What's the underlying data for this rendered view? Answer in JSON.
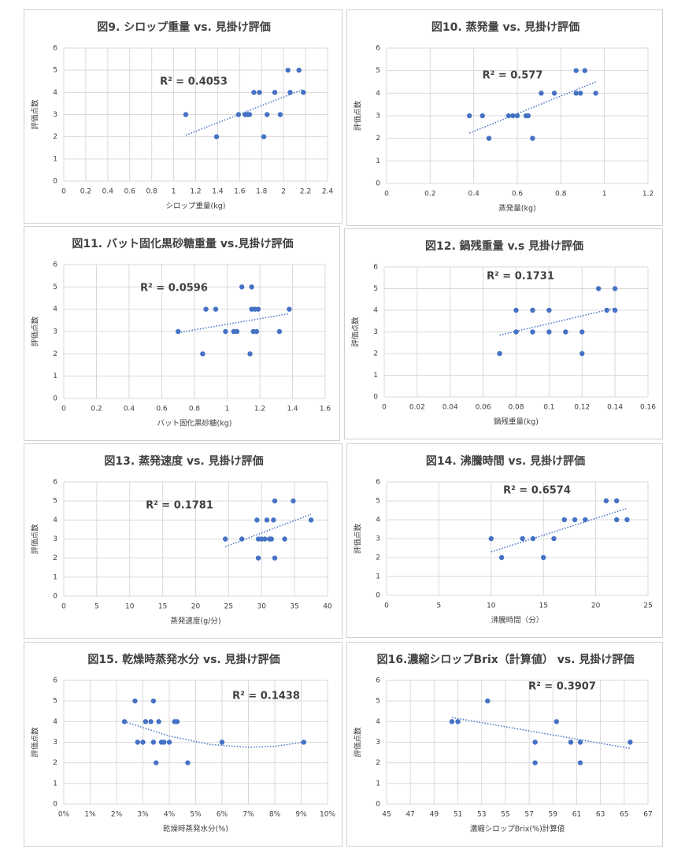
{
  "chart_data": [
    {
      "type": "scatter",
      "title": "図9.  シロップ重量   vs.   見掛け評価",
      "annotation": "R² = 0.4053",
      "x_label": "シロップ重量(kg)",
      "y_label": "評価点数",
      "color": "#4472c4",
      "grid": true,
      "x": [
        1.11,
        1.39,
        1.59,
        1.65,
        1.67,
        1.69,
        1.73,
        1.78,
        1.82,
        1.85,
        1.92,
        1.97,
        2.04,
        2.06,
        2.14,
        2.18
      ],
      "y": [
        3,
        2,
        3,
        3,
        3,
        3,
        4,
        4,
        2,
        3,
        4,
        3,
        5,
        4,
        5,
        4
      ],
      "xlim": [
        0,
        2.4
      ],
      "xticks": [
        0,
        0.2,
        0.4,
        0.6,
        0.8,
        1,
        1.2,
        1.4,
        1.6,
        1.8,
        2,
        2.2,
        2.4
      ],
      "ylim": [
        0,
        6
      ],
      "yticks": [
        0,
        1,
        2,
        3,
        4,
        5,
        6
      ],
      "trendline": {
        "x": [
          1.11,
          2.18
        ],
        "y": [
          2.07,
          4.14
        ]
      }
    },
    {
      "type": "scatter",
      "title": "図10.  蒸発量   vs.   見掛け評価",
      "annotation": "R² = 0.577",
      "x_label": "蒸発量(kg)",
      "y_label": "評価点数",
      "color": "#4472c4",
      "grid": true,
      "x": [
        0.38,
        0.44,
        0.47,
        0.56,
        0.58,
        0.6,
        0.64,
        0.65,
        0.67,
        0.71,
        0.77,
        0.87,
        0.87,
        0.89,
        0.91,
        0.96
      ],
      "y": [
        3,
        3,
        2,
        3,
        3,
        3,
        3,
        3,
        2,
        4,
        4,
        5,
        4,
        4,
        5,
        4
      ],
      "xlim": [
        0,
        1.2
      ],
      "xticks": [
        0,
        0.2,
        0.4,
        0.6,
        0.8,
        1,
        1.2
      ],
      "ylim": [
        0,
        6
      ],
      "yticks": [
        0,
        1,
        2,
        3,
        4,
        5,
        6
      ],
      "trendline": {
        "x": [
          0.38,
          0.96
        ],
        "y": [
          2.23,
          4.5
        ]
      }
    },
    {
      "type": "scatter",
      "title": "図11.   バット固化黒砂糖重量    vs.見掛け評価",
      "annotation": "R² = 0.0596",
      "x_label": "バット固化黒砂糖(kg)",
      "y_label": "評価点数",
      "color": "#4472c4",
      "grid": true,
      "x": [
        0.7,
        0.85,
        0.87,
        0.93,
        0.99,
        1.04,
        1.06,
        1.09,
        1.14,
        1.15,
        1.15,
        1.16,
        1.17,
        1.18,
        1.19,
        1.32,
        1.38
      ],
      "y": [
        3,
        2,
        4,
        4,
        3,
        3,
        3,
        5,
        2,
        4,
        5,
        3,
        4,
        3,
        4,
        3,
        4
      ],
      "xlim": [
        0,
        1.6
      ],
      "xticks": [
        0,
        0.2,
        0.4,
        0.6,
        0.8,
        1,
        1.2,
        1.4,
        1.6
      ],
      "ylim": [
        0,
        6
      ],
      "yticks": [
        0,
        1,
        2,
        3,
        4,
        5,
        6
      ],
      "trendline": {
        "x": [
          0.7,
          1.38
        ],
        "y": [
          2.95,
          3.8
        ]
      }
    },
    {
      "type": "scatter",
      "title": "図12.   鍋残重量   v.s   見掛け評価",
      "annotation": "R² = 0.1731",
      "x_label": "鍋残重量(kg)",
      "y_label": "評価点数",
      "color": "#4472c4",
      "grid": true,
      "x": [
        0.07,
        0.08,
        0.08,
        0.09,
        0.09,
        0.1,
        0.1,
        0.11,
        0.12,
        0.12,
        0.13,
        0.135,
        0.14,
        0.14
      ],
      "y": [
        2,
        3,
        4,
        3,
        4,
        3,
        4,
        3,
        3,
        2,
        5,
        4,
        5,
        4
      ],
      "xlim": [
        0,
        0.16
      ],
      "xticks": [
        0,
        0.02,
        0.04,
        0.06,
        0.08,
        0.1,
        0.12,
        0.14,
        0.16
      ],
      "ylim": [
        0,
        6
      ],
      "yticks": [
        0,
        1,
        2,
        3,
        4,
        5,
        6
      ],
      "trendline": {
        "x": [
          0.07,
          0.14
        ],
        "y": [
          2.85,
          4.1
        ]
      }
    },
    {
      "type": "scatter",
      "title": "図13.   蒸発速度   vs.   見掛け評価",
      "annotation": "R² = 0.1781",
      "x_label": "蒸発速度(g/分)",
      "y_label": "評価点数",
      "color": "#4472c4",
      "grid": true,
      "x": [
        24.5,
        27,
        29.3,
        29.5,
        29.5,
        30,
        30.5,
        30.8,
        31.2,
        31.5,
        31.8,
        32,
        32,
        33.5,
        34.8,
        37.5
      ],
      "y": [
        3,
        3,
        4,
        3,
        2,
        3,
        3,
        4,
        3,
        3,
        4,
        5,
        2,
        3,
        5,
        4
      ],
      "xlim": [
        0,
        40
      ],
      "xticks": [
        0,
        5,
        10,
        15,
        20,
        25,
        30,
        35,
        40
      ],
      "ylim": [
        0,
        6
      ],
      "yticks": [
        0,
        1,
        2,
        3,
        4,
        5,
        6
      ],
      "trendline": {
        "x": [
          24.5,
          37.5
        ],
        "y": [
          2.6,
          4.3
        ]
      }
    },
    {
      "type": "scatter",
      "title": "図14.   沸騰時間   vs.   見掛け評価",
      "annotation": "R² = 0.6574",
      "x_label": "沸騰時間（分）",
      "y_label": "評価点数",
      "color": "#4472c4",
      "grid": true,
      "x": [
        10,
        11,
        13,
        14,
        15,
        16,
        17,
        18,
        19,
        21,
        22,
        22,
        23
      ],
      "y": [
        3,
        2,
        3,
        3,
        2,
        3,
        4,
        4,
        4,
        5,
        5,
        4,
        4
      ],
      "xlim": [
        0,
        25
      ],
      "xticks": [
        0,
        5,
        10,
        15,
        20,
        25
      ],
      "ylim": [
        0,
        6
      ],
      "yticks": [
        0,
        1,
        2,
        3,
        4,
        5,
        6
      ],
      "trendline": {
        "x": [
          10,
          23
        ],
        "y": [
          2.3,
          4.6
        ]
      }
    },
    {
      "type": "scatter",
      "title": "図15.   乾燥時蒸発水分   vs.   見掛け評価",
      "annotation": "R² = 0.1438",
      "x_label": "乾燥時蒸発水分(%)",
      "y_label": "評価点数",
      "color": "#4472c4",
      "grid": true,
      "x": [
        2.3,
        2.7,
        2.8,
        3.0,
        3.1,
        3.3,
        3.4,
        3.4,
        3.5,
        3.6,
        3.7,
        3.8,
        4.0,
        4.2,
        4.3,
        4.7,
        6.0,
        9.1
      ],
      "y": [
        4,
        5,
        3,
        3,
        4,
        4,
        3,
        5,
        2,
        4,
        3,
        3,
        3,
        4,
        4,
        2,
        3,
        3
      ],
      "xlim": [
        0,
        10
      ],
      "xticks": [
        {
          "value": 0,
          "label": "0%"
        },
        {
          "value": 1,
          "label": "1%"
        },
        {
          "value": 2,
          "label": "2%"
        },
        {
          "value": 3,
          "label": "3%"
        },
        {
          "value": 4,
          "label": "4%"
        },
        {
          "value": 5,
          "label": "5%"
        },
        {
          "value": 6,
          "label": "6%"
        },
        {
          "value": 7,
          "label": "7%"
        },
        {
          "value": 8,
          "label": "8%"
        },
        {
          "value": 9,
          "label": "9%"
        },
        {
          "value": 10,
          "label": "10%"
        }
      ],
      "ylim": [
        0,
        6
      ],
      "yticks": [
        0,
        1,
        2,
        3,
        4,
        5,
        6
      ],
      "trendline": {
        "x": [
          2.3,
          4,
          5.5,
          7,
          8,
          9.1
        ],
        "y": [
          4.0,
          3.3,
          2.9,
          2.75,
          2.8,
          3.0
        ]
      }
    },
    {
      "type": "scatter",
      "title": "図16.濃縮シロップBrix（計算値）   vs.   見掛け評価",
      "annotation": "R² = 0.3907",
      "x_label": "濃縮シロップBrix(%)計算値",
      "y_label": "評価点数",
      "color": "#4472c4",
      "grid": true,
      "x": [
        50.5,
        51,
        53.5,
        57.5,
        57.5,
        59.3,
        60.5,
        61.3,
        61.3,
        65.5
      ],
      "y": [
        4,
        4,
        5,
        3,
        2,
        4,
        3,
        3,
        2,
        3
      ],
      "xlim": [
        45,
        67
      ],
      "xticks": [
        45,
        47,
        49,
        51,
        53,
        55,
        57,
        59,
        61,
        63,
        65,
        67
      ],
      "ylim": [
        0,
        6
      ],
      "yticks": [
        0,
        1,
        2,
        3,
        4,
        5,
        6
      ],
      "trendline": {
        "x": [
          50.5,
          65.5
        ],
        "y": [
          4.2,
          2.7
        ]
      }
    }
  ]
}
